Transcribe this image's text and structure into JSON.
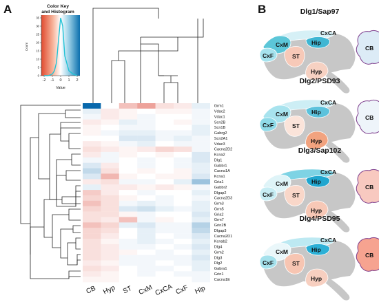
{
  "panels": {
    "a": "A",
    "b": "B"
  },
  "color_key": {
    "title_line1": "Color Key",
    "title_line2": "and Histogram",
    "ylabel": "Count",
    "xlabel": "Value",
    "x_ticks": [
      "-2",
      "-1",
      "0",
      "1",
      "2"
    ],
    "y_ticks": [
      "0",
      "5",
      "10",
      "15",
      "20",
      "25",
      "30",
      "35"
    ],
    "colors": {
      "low": "#d7301f",
      "mid": "#ffffff",
      "high": "#0868ac",
      "hist": "#22c3d6"
    }
  },
  "chart_data": {
    "type": "heatmap",
    "columns": [
      "CB",
      "Hyp",
      "ST",
      "CxM",
      "CxCA",
      "CxF",
      "Hip"
    ],
    "rows": [
      "Grm1",
      "Vdac2",
      "Vdac1",
      "Scn2B",
      "Scn1B",
      "Gabrg2",
      "Scn2A1",
      "Vdac3",
      "Cacna2D2",
      "Kcna2",
      "Dlg1",
      "Gabbr1",
      "Cacna1A",
      "Kcna1",
      "Gria1",
      "Gabbr2",
      "Dlgap2",
      "Cacna2D3",
      "Grm3",
      "Grm5",
      "Gria2",
      "Grm7",
      "Grin2B",
      "Dlgap3",
      "Cacna2D1",
      "Kcnab2",
      "Dlg4",
      "Grm2",
      "Dlg3",
      "Dlg2",
      "Gabra1",
      "Grin1",
      "Cacna1E"
    ],
    "value_range": [
      -2,
      2
    ],
    "values": [
      [
        2.0,
        0.0,
        -0.6,
        -0.9,
        -0.3,
        -0.2,
        0.2
      ],
      [
        0.2,
        -0.2,
        -0.1,
        0.0,
        -0.1,
        -0.1,
        0.1
      ],
      [
        0.1,
        -0.2,
        -0.1,
        0.1,
        0.0,
        0.0,
        0.1
      ],
      [
        -0.2,
        -0.1,
        0.2,
        0.1,
        0.0,
        -0.1,
        0.1
      ],
      [
        -0.1,
        0.0,
        0.1,
        0.1,
        0.0,
        0.0,
        0.2
      ],
      [
        -0.1,
        0.1,
        0.2,
        0.2,
        0.1,
        0.1,
        0.2
      ],
      [
        0.0,
        0.0,
        0.3,
        0.3,
        0.1,
        0.2,
        0.1
      ],
      [
        -0.2,
        -0.1,
        0.1,
        0.2,
        0.0,
        0.1,
        0.1
      ],
      [
        -0.3,
        -0.2,
        -0.1,
        -0.2,
        -0.4,
        -0.3,
        0.1
      ],
      [
        -0.2,
        0.1,
        -0.1,
        0.0,
        -0.1,
        0.0,
        0.3
      ],
      [
        0.1,
        0.1,
        0.0,
        0.1,
        0.0,
        0.1,
        0.3
      ],
      [
        0.3,
        -0.2,
        0.0,
        0.1,
        0.0,
        0.1,
        0.2
      ],
      [
        0.5,
        -0.3,
        0.0,
        -0.1,
        0.0,
        -0.1,
        0.2
      ],
      [
        0.3,
        -0.7,
        -0.1,
        0.0,
        -0.1,
        -0.1,
        0.3
      ],
      [
        -0.2,
        -0.3,
        0.1,
        0.1,
        0.0,
        0.2,
        0.8
      ],
      [
        0.2,
        -0.2,
        -0.2,
        -0.1,
        -0.2,
        -0.1,
        0.1
      ],
      [
        -0.5,
        -0.2,
        0.0,
        0.1,
        0.0,
        0.0,
        0.2
      ],
      [
        -0.4,
        -0.3,
        -0.1,
        0.0,
        0.1,
        0.0,
        0.1
      ],
      [
        -0.6,
        -0.3,
        0.1,
        0.2,
        0.1,
        0.0,
        0.2
      ],
      [
        -0.4,
        -0.3,
        0.3,
        0.4,
        0.2,
        0.1,
        0.2
      ],
      [
        -0.3,
        -0.3,
        -0.1,
        0.1,
        0.0,
        0.0,
        0.3
      ],
      [
        -0.3,
        -0.2,
        -0.6,
        0.1,
        -0.1,
        0.0,
        0.2
      ],
      [
        -0.6,
        -0.4,
        0.2,
        0.3,
        0.1,
        0.1,
        0.6
      ],
      [
        -0.4,
        -0.3,
        0.0,
        0.2,
        0.1,
        0.1,
        0.5
      ],
      [
        -0.4,
        -0.2,
        0.0,
        0.2,
        0.0,
        0.1,
        0.3
      ],
      [
        -0.3,
        -0.1,
        0.1,
        0.2,
        0.1,
        0.0,
        0.2
      ],
      [
        -0.3,
        -0.2,
        0.1,
        0.1,
        0.0,
        0.1,
        0.3
      ],
      [
        -0.3,
        -0.2,
        -0.1,
        0.0,
        0.1,
        0.0,
        0.2
      ],
      [
        -0.3,
        -0.2,
        0.1,
        0.1,
        0.1,
        0.1,
        0.3
      ],
      [
        -0.2,
        -0.1,
        0.1,
        0.1,
        0.0,
        0.1,
        0.2
      ],
      [
        -0.3,
        -0.2,
        0.0,
        0.1,
        0.1,
        0.0,
        0.2
      ],
      [
        -0.2,
        -0.1,
        0.0,
        0.1,
        0.0,
        0.1,
        0.1
      ],
      [
        -0.1,
        -0.1,
        0.0,
        0.0,
        0.0,
        0.0,
        0.1
      ]
    ],
    "histogram": {
      "x": [
        -2,
        -1.5,
        -1,
        -0.75,
        -0.5,
        -0.25,
        0,
        0.25,
        0.5,
        1,
        1.5,
        2
      ],
      "count": [
        0,
        0,
        1,
        3,
        8,
        22,
        35,
        30,
        12,
        3,
        1,
        0
      ]
    }
  },
  "brains": [
    {
      "title": "Dlg1/Sap97",
      "colors": {
        "CxCA": "#d6f0f6",
        "CxM": "#5cc6d8",
        "CxF": "#a6e3ee",
        "Hip": "#3fb6d3",
        "ST": "#f7c9b8",
        "Hyp": "#f6d1c2",
        "CB": "#dcebf6"
      }
    },
    {
      "title": "Dlg2/PSD93",
      "colors": {
        "CxCA": "#cdeef5",
        "CxM": "#a8e3ee",
        "CxF": "#8fdae8",
        "Hip": "#5cc2dc",
        "ST": "#fbe4da",
        "Hyp": "#f2a37f",
        "CB": "#eef4fa"
      }
    },
    {
      "title": "Dlg3/Sap102",
      "colors": {
        "CxCA": "#7ed3e4",
        "CxM": "#dff4f8",
        "CxF": "#c7edf4",
        "Hip": "#1fa6cf",
        "ST": "#f9d7c9",
        "Hyp": "#f7c8b6",
        "CB": "#f8c9c0"
      }
    },
    {
      "title": "Dlg4/PSD95",
      "colors": {
        "CxCA": "#bde9f2",
        "CxM": "#eaf7fa",
        "CxF": "#a5e1ec",
        "Hip": "#2cb0d6",
        "ST": "#f7c5b2",
        "Hyp": "#f7cfc0",
        "CB": "#f6a390"
      }
    }
  ],
  "region_labels": {
    "CxCA": "CxCA",
    "CxM": "CxM",
    "CxF": "CxF",
    "Hip": "Hip",
    "ST": "ST",
    "Hyp": "Hyp",
    "CB": "CB"
  }
}
